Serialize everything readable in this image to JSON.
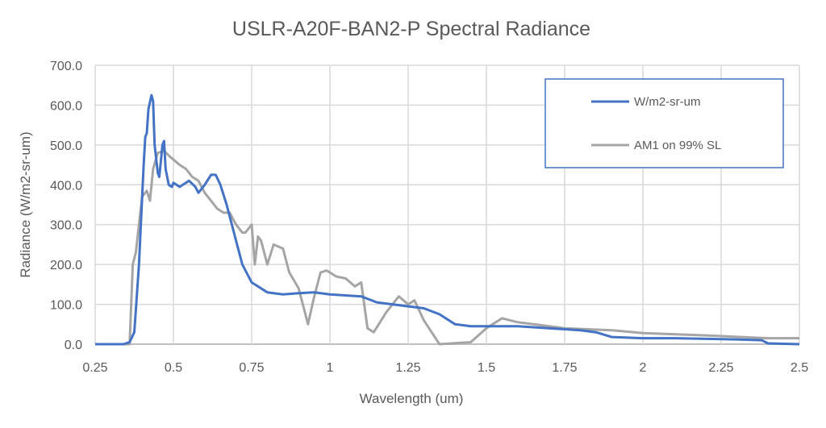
{
  "chart_data": {
    "type": "line",
    "title": "USLR-A20F-BAN2-P Spectral Radiance",
    "xlabel": "Wavelength (um)",
    "ylabel": "Radiance (W/m2-sr-um)",
    "xlim": [
      0.25,
      2.5
    ],
    "ylim": [
      0,
      700
    ],
    "xticks": [
      0.25,
      0.5,
      0.75,
      1,
      1.25,
      1.5,
      1.75,
      2,
      2.25,
      2.5
    ],
    "xtick_labels": [
      "0.25",
      "0.5",
      "0.75",
      "1",
      "1.25",
      "1.5",
      "1.75",
      "2",
      "2.25",
      "2.5"
    ],
    "yticks": [
      0,
      100,
      200,
      300,
      400,
      500,
      600,
      700
    ],
    "ytick_labels": [
      "0.0",
      "100.0",
      "200.0",
      "300.0",
      "400.0",
      "500.0",
      "600.0",
      "700.0"
    ],
    "grid": true,
    "legend_position": "top-right",
    "series": [
      {
        "name": "W/m2-sr-um",
        "color": "#4472C4",
        "points": [
          [
            0.25,
            0
          ],
          [
            0.34,
            0
          ],
          [
            0.36,
            5
          ],
          [
            0.375,
            30
          ],
          [
            0.39,
            200
          ],
          [
            0.405,
            450
          ],
          [
            0.41,
            520
          ],
          [
            0.415,
            530
          ],
          [
            0.42,
            590
          ],
          [
            0.43,
            625
          ],
          [
            0.435,
            610
          ],
          [
            0.44,
            500
          ],
          [
            0.45,
            430
          ],
          [
            0.455,
            420
          ],
          [
            0.465,
            500
          ],
          [
            0.47,
            510
          ],
          [
            0.475,
            440
          ],
          [
            0.485,
            400
          ],
          [
            0.495,
            395
          ],
          [
            0.5,
            405
          ],
          [
            0.52,
            395
          ],
          [
            0.55,
            410
          ],
          [
            0.57,
            395
          ],
          [
            0.58,
            380
          ],
          [
            0.6,
            400
          ],
          [
            0.62,
            425
          ],
          [
            0.635,
            425
          ],
          [
            0.65,
            400
          ],
          [
            0.67,
            350
          ],
          [
            0.7,
            260
          ],
          [
            0.72,
            200
          ],
          [
            0.75,
            155
          ],
          [
            0.8,
            130
          ],
          [
            0.85,
            125
          ],
          [
            0.9,
            128
          ],
          [
            0.95,
            130
          ],
          [
            1.0,
            125
          ],
          [
            1.1,
            120
          ],
          [
            1.15,
            105
          ],
          [
            1.2,
            100
          ],
          [
            1.3,
            90
          ],
          [
            1.35,
            75
          ],
          [
            1.4,
            50
          ],
          [
            1.45,
            45
          ],
          [
            1.5,
            45
          ],
          [
            1.6,
            45
          ],
          [
            1.7,
            40
          ],
          [
            1.8,
            35
          ],
          [
            1.85,
            30
          ],
          [
            1.9,
            18
          ],
          [
            2.0,
            15
          ],
          [
            2.1,
            15
          ],
          [
            2.3,
            12
          ],
          [
            2.38,
            10
          ],
          [
            2.4,
            2
          ],
          [
            2.5,
            0
          ]
        ]
      },
      {
        "name": "AM1 on 99% SL",
        "color": "#A5A5A5",
        "points": [
          [
            0.25,
            0
          ],
          [
            0.36,
            0
          ],
          [
            0.37,
            200
          ],
          [
            0.38,
            230
          ],
          [
            0.39,
            300
          ],
          [
            0.4,
            370
          ],
          [
            0.415,
            385
          ],
          [
            0.425,
            360
          ],
          [
            0.435,
            440
          ],
          [
            0.45,
            480
          ],
          [
            0.47,
            485
          ],
          [
            0.49,
            470
          ],
          [
            0.52,
            450
          ],
          [
            0.54,
            440
          ],
          [
            0.56,
            420
          ],
          [
            0.58,
            410
          ],
          [
            0.6,
            380
          ],
          [
            0.62,
            360
          ],
          [
            0.64,
            340
          ],
          [
            0.66,
            330
          ],
          [
            0.68,
            330
          ],
          [
            0.7,
            300
          ],
          [
            0.72,
            280
          ],
          [
            0.73,
            280
          ],
          [
            0.75,
            300
          ],
          [
            0.76,
            200
          ],
          [
            0.77,
            270
          ],
          [
            0.78,
            260
          ],
          [
            0.8,
            200
          ],
          [
            0.82,
            250
          ],
          [
            0.85,
            240
          ],
          [
            0.87,
            180
          ],
          [
            0.9,
            140
          ],
          [
            0.92,
            80
          ],
          [
            0.93,
            50
          ],
          [
            0.95,
            120
          ],
          [
            0.97,
            180
          ],
          [
            0.99,
            185
          ],
          [
            1.02,
            170
          ],
          [
            1.05,
            165
          ],
          [
            1.08,
            145
          ],
          [
            1.1,
            155
          ],
          [
            1.12,
            40
          ],
          [
            1.14,
            30
          ],
          [
            1.18,
            80
          ],
          [
            1.22,
            120
          ],
          [
            1.25,
            100
          ],
          [
            1.27,
            110
          ],
          [
            1.3,
            60
          ],
          [
            1.35,
            0
          ],
          [
            1.45,
            5
          ],
          [
            1.5,
            40
          ],
          [
            1.55,
            65
          ],
          [
            1.6,
            55
          ],
          [
            1.75,
            40
          ],
          [
            1.9,
            35
          ],
          [
            2.0,
            28
          ],
          [
            2.2,
            22
          ],
          [
            2.4,
            15
          ],
          [
            2.5,
            15
          ]
        ]
      }
    ]
  }
}
